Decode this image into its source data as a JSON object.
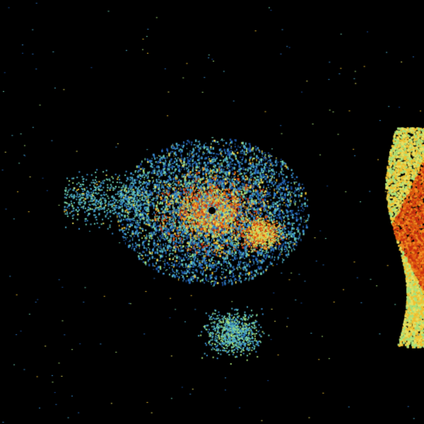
{
  "palette": {
    "background": "#000000",
    "weak": [
      "#1a4fa0",
      "#2a6fc0",
      "#3a8fd0",
      "#4fb0c8",
      "#6fd0b0"
    ],
    "moderate": [
      "#a8e07a",
      "#e8e060",
      "#f0c030"
    ],
    "strong": [
      "#f08a20",
      "#e05a10",
      "#c83010"
    ]
  },
  "radar_site_icon": "radar-site-marker-icon"
}
